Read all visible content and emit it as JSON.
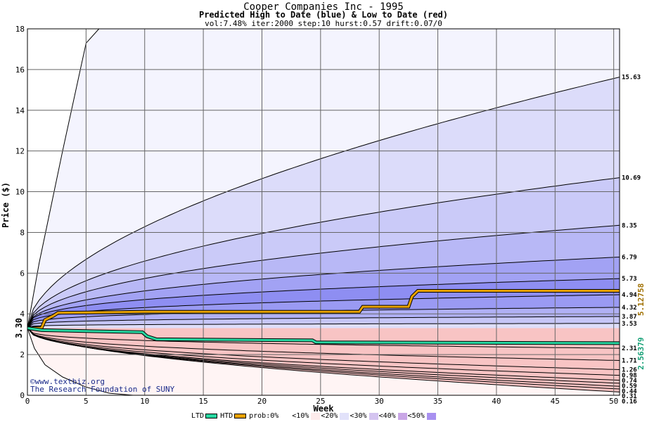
{
  "chart_data": {
    "type": "area",
    "title": "Cooper Companies Inc - 1995",
    "subtitle": "Predicted High to Date (blue) &  Low to Date (red)",
    "params": "vol:7.48% iter:2000 step:10 hurst:0.57 drift:0.07/0",
    "xlabel": "Week",
    "ylabel": "Price ($)",
    "xlim": [
      0,
      50.5
    ],
    "ylim": [
      0,
      18
    ],
    "xticks": [
      0,
      5,
      10,
      15,
      20,
      25,
      30,
      35,
      40,
      45,
      50
    ],
    "yticks": [
      0,
      2,
      4,
      6,
      8,
      10,
      12,
      14,
      16,
      18
    ],
    "grid": true,
    "start_price": 3.3,
    "start_label": "3.30",
    "htd_label": "5.12758",
    "ltd_label": "2.56379",
    "high_bands": [
      {
        "label": "15.63",
        "end": 15.63,
        "k": 0.56,
        "color": "#dcdcfa"
      },
      {
        "label": "10.69",
        "end": 10.69,
        "k": 0.5,
        "color": "#cacaf8"
      },
      {
        "label": "8.35",
        "end": 8.35,
        "k": 0.45,
        "color": "#b8b8f6"
      },
      {
        "label": "6.79",
        "end": 6.79,
        "k": 0.4,
        "color": "#a2a2f4"
      },
      {
        "label": "5.73",
        "end": 5.73,
        "k": 0.34,
        "color": "#8e8ef2"
      },
      {
        "label": "4.94",
        "end": 4.94,
        "k": 0.3,
        "color": "#9a9af3"
      },
      {
        "label": "4.32",
        "end": 4.32,
        "k": 0.26,
        "color": "#b0b0f5"
      },
      {
        "label": "3.87",
        "end": 3.87,
        "k": 0.22,
        "color": "#c6c6f7"
      },
      {
        "label": "3.53",
        "end": 3.53,
        "k": 0.18,
        "color": "#dedefa"
      }
    ],
    "low_bands": [
      {
        "label": "2.31",
        "end": 2.31,
        "k": 0.3,
        "color": "#fde6e6"
      },
      {
        "label": "1.71",
        "end": 1.71,
        "k": 0.36,
        "color": "#fbcfcf"
      },
      {
        "label": "1.26",
        "end": 1.26,
        "k": 0.4,
        "color": "#f8b4b4"
      },
      {
        "label": "0.98",
        "end": 0.98,
        "k": 0.42,
        "color": "#f5a0a0"
      },
      {
        "label": "0.74",
        "end": 0.74,
        "k": 0.44,
        "color": "#f28c8c"
      },
      {
        "label": "0.59",
        "end": 0.59,
        "k": 0.46,
        "color": "#ef8080"
      },
      {
        "label": "0.44",
        "end": 0.44,
        "k": 0.48,
        "color": "#f29292"
      },
      {
        "label": "0.31",
        "end": 0.31,
        "k": 0.5,
        "color": "#f5a8a8"
      },
      {
        "label": "0.16",
        "end": 0.16,
        "k": 0.52,
        "color": "#f8c4c4"
      }
    ],
    "outer_high_curve": [
      [
        0,
        3.3
      ],
      [
        1,
        6.5
      ],
      [
        3,
        12
      ],
      [
        5,
        17.3
      ],
      [
        6.1,
        18
      ]
    ],
    "outer_low_curve": [
      [
        0,
        3.3
      ],
      [
        0.6,
        2.3
      ],
      [
        1.5,
        1.5
      ],
      [
        3,
        0.9
      ],
      [
        5,
        0.4
      ],
      [
        7,
        0.1
      ],
      [
        9,
        0
      ]
    ],
    "high_to_date": [
      [
        0,
        3.3
      ],
      [
        1.2,
        3.3
      ],
      [
        1.5,
        3.7
      ],
      [
        2.2,
        3.9
      ],
      [
        2.6,
        4.05
      ],
      [
        10,
        4.1
      ],
      [
        20,
        4.1
      ],
      [
        28.3,
        4.1
      ],
      [
        28.6,
        4.35
      ],
      [
        32.5,
        4.35
      ],
      [
        32.8,
        4.85
      ],
      [
        33.3,
        5.13
      ],
      [
        50.5,
        5.13
      ]
    ],
    "low_to_date": [
      [
        0,
        3.3
      ],
      [
        1.2,
        3.2
      ],
      [
        5,
        3.15
      ],
      [
        9.8,
        3.1
      ],
      [
        10.2,
        2.9
      ],
      [
        11,
        2.75
      ],
      [
        24.3,
        2.7
      ],
      [
        24.6,
        2.6
      ],
      [
        50.5,
        2.56
      ]
    ]
  },
  "watermark": {
    "site": "www.textbiz.org",
    "org": "The Research Foundation of SUNY"
  },
  "legend": {
    "ltd": "LTD",
    "htd": "HTD",
    "prob": "prob:0%",
    "items": [
      {
        "label": "<10%",
        "color": "#fdecec"
      },
      {
        "label": "<20%",
        "color": "#e2e2fa"
      },
      {
        "label": "<30%",
        "color": "#d4c4f0"
      },
      {
        "label": "<40%",
        "color": "#c9a6e6"
      },
      {
        "label": "<50%",
        "color": "#a890f0"
      }
    ],
    "colors": {
      "ltd": "#27d6a0",
      "htd": "#e8a200",
      "tail": "#ffffff"
    }
  }
}
